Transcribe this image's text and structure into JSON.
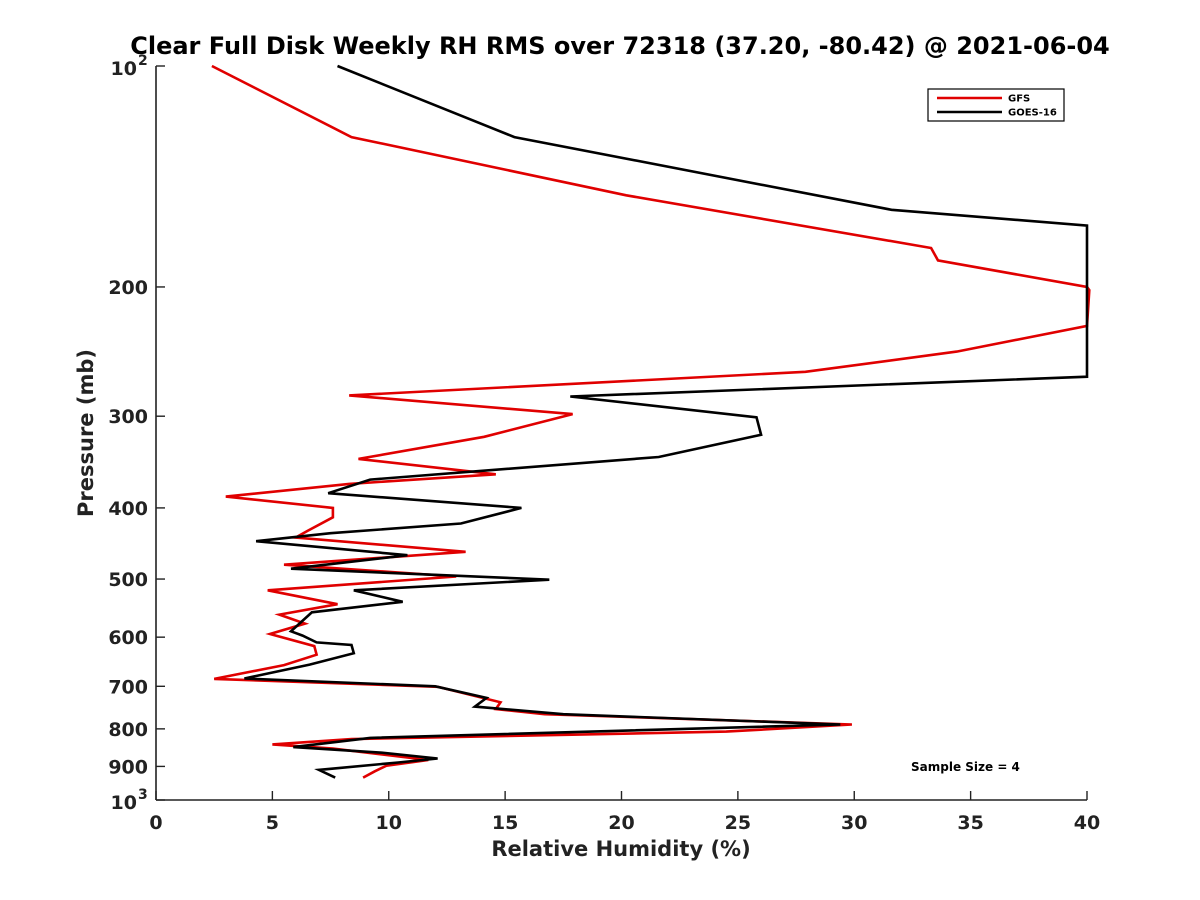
{
  "chart_data": {
    "type": "line",
    "title": "Clear Full Disk Weekly RH RMS over 72318 (37.20, -80.42) @ 2021-06-04",
    "xlabel": "Relative Humidity (%)",
    "ylabel": "Pressure (mb)",
    "xlim": [
      0,
      40
    ],
    "ylim": [
      100,
      1000
    ],
    "y_scale": "log",
    "y_reversed": true,
    "x_ticks": [
      "0",
      "5",
      "10",
      "15",
      "20",
      "25",
      "30",
      "35",
      "40"
    ],
    "y_ticks": [
      {
        "value": 100,
        "base": "10",
        "exp": "2"
      },
      {
        "value": 200,
        "label": "200"
      },
      {
        "value": 300,
        "label": "300"
      },
      {
        "value": 400,
        "label": "400"
      },
      {
        "value": 500,
        "label": "500"
      },
      {
        "value": 600,
        "label": "600"
      },
      {
        "value": 700,
        "label": "700"
      },
      {
        "value": 800,
        "label": "800"
      },
      {
        "value": 900,
        "label": "900"
      },
      {
        "value": 1000,
        "base": "10",
        "exp": "3"
      }
    ],
    "legend_position": "top-right",
    "annotation": "Sample Size = 4",
    "series": [
      {
        "name": "GFS",
        "color": "#e00000",
        "points": [
          [
            2.4,
            100
          ],
          [
            8.4,
            125
          ],
          [
            20.2,
            150
          ],
          [
            33.3,
            177
          ],
          [
            33.6,
            184
          ],
          [
            40.0,
            200
          ],
          [
            40.1,
            202
          ],
          [
            40.0,
            226
          ],
          [
            34.4,
            245
          ],
          [
            27.9,
            261
          ],
          [
            8.3,
            281
          ],
          [
            17.9,
            298
          ],
          [
            14.1,
            320
          ],
          [
            8.7,
            343
          ],
          [
            14.6,
            360
          ],
          [
            8.3,
            371
          ],
          [
            3.0,
            386
          ],
          [
            7.6,
            400
          ],
          [
            7.6,
            412
          ],
          [
            6.5,
            430
          ],
          [
            6.0,
            439
          ],
          [
            13.3,
            459
          ],
          [
            5.5,
            478
          ],
          [
            12.9,
            496
          ],
          [
            4.8,
            518
          ],
          [
            7.8,
            541
          ],
          [
            5.3,
            559
          ],
          [
            6.4,
            575
          ],
          [
            4.9,
            594
          ],
          [
            6.8,
            617
          ],
          [
            6.9,
            634
          ],
          [
            5.5,
            655
          ],
          [
            2.5,
            684
          ],
          [
            12.1,
            701
          ],
          [
            14.8,
            736
          ],
          [
            14.6,
            752
          ],
          [
            16.7,
            764
          ],
          [
            29.9,
            789
          ],
          [
            24.5,
            807
          ],
          [
            8.4,
            826
          ],
          [
            5.0,
            840
          ],
          [
            7.6,
            851
          ],
          [
            11.7,
            882
          ],
          [
            9.9,
            898
          ],
          [
            9.4,
            914
          ],
          [
            8.9,
            932
          ]
        ]
      },
      {
        "name": "GOES-16",
        "color": "#000000",
        "points": [
          [
            7.8,
            100
          ],
          [
            15.4,
            125
          ],
          [
            31.6,
            157
          ],
          [
            40.0,
            165
          ],
          [
            40.0,
            265
          ],
          [
            17.8,
            282
          ],
          [
            25.8,
            301
          ],
          [
            26.0,
            318
          ],
          [
            21.6,
            341
          ],
          [
            9.2,
            366
          ],
          [
            7.4,
            382
          ],
          [
            15.7,
            400
          ],
          [
            13.1,
            420
          ],
          [
            7.5,
            433
          ],
          [
            4.3,
            444
          ],
          [
            10.8,
            464
          ],
          [
            5.8,
            484
          ],
          [
            16.9,
            501
          ],
          [
            8.5,
            518
          ],
          [
            10.6,
            537
          ],
          [
            6.7,
            555
          ],
          [
            5.8,
            589
          ],
          [
            6.3,
            597
          ],
          [
            6.9,
            610
          ],
          [
            8.4,
            615
          ],
          [
            8.5,
            631
          ],
          [
            6.6,
            654
          ],
          [
            3.8,
            683
          ],
          [
            12.0,
            700
          ],
          [
            14.2,
            726
          ],
          [
            13.7,
            746
          ],
          [
            17.5,
            764
          ],
          [
            29.4,
            789
          ],
          [
            9.2,
            823
          ],
          [
            5.9,
            847
          ],
          [
            9.7,
            862
          ],
          [
            12.1,
            878
          ],
          [
            10.4,
            889
          ],
          [
            7.0,
            910
          ],
          [
            7.7,
            932
          ]
        ]
      }
    ]
  }
}
